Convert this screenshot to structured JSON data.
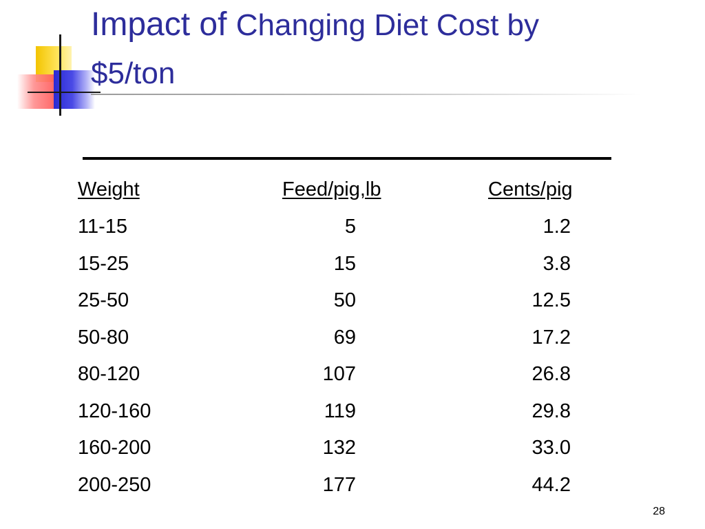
{
  "slide": {
    "title_part1": "Impact of ",
    "title_part2": "Changing Diet Cost by $5/ton",
    "page_number": "28"
  },
  "table": {
    "headers": {
      "weight": "Weight",
      "feed": "Feed/pig,lb",
      "cents": "Cents/pig"
    },
    "rows": [
      {
        "weight": "11-15",
        "feed": "5",
        "cents": "1.2"
      },
      {
        "weight": "15-25",
        "feed": "15",
        "cents": "3.8"
      },
      {
        "weight": "25-50",
        "feed": "50",
        "cents": "12.5"
      },
      {
        "weight": "50-80",
        "feed": "69",
        "cents": "17.2"
      },
      {
        "weight": "80-120",
        "feed": "107",
        "cents": "26.8"
      },
      {
        "weight": "120-160",
        "feed": "119",
        "cents": "29.8"
      },
      {
        "weight": "160-200",
        "feed": "132",
        "cents": "33.0"
      },
      {
        "weight": "200-250",
        "feed": "177",
        "cents": "44.2"
      }
    ]
  },
  "colors": {
    "title": "#2d2d9b",
    "text": "#000000",
    "background": "#ffffff"
  }
}
